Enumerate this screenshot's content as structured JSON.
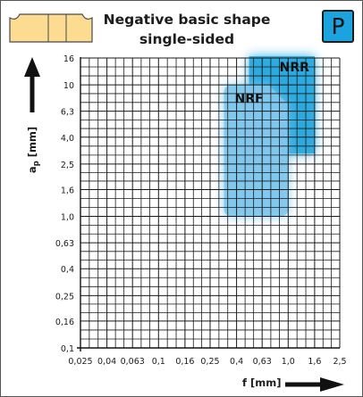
{
  "header": {
    "title_line1": "Negative basic shape",
    "title_line2": "single-sided",
    "badge": "P"
  },
  "colors": {
    "badge": "#1aa3de",
    "nrr_region": "#29a9de",
    "nrf_region": "#80c8ee",
    "insert_icon": "#fbdc91",
    "grid": "#1a1a1a"
  },
  "chart_data": {
    "type": "area",
    "xlabel": "f [mm]",
    "ylabel": "ap [mm]",
    "x_scale": "log",
    "y_scale": "log",
    "x_ticks": [
      "0,025",
      "0,04",
      "0,063",
      "0,1",
      "0,16",
      "0,25",
      "0,4",
      "0,63",
      "1,0",
      "1,6",
      "2,5"
    ],
    "x_tick_values": [
      0.025,
      0.04,
      0.063,
      0.1,
      0.16,
      0.25,
      0.4,
      0.63,
      1.0,
      1.6,
      2.5
    ],
    "y_ticks": [
      "0,1",
      "0,16",
      "0,25",
      "0,4",
      "0,63",
      "1,0",
      "1,6",
      "2,5",
      "4,0",
      "6,3",
      "10",
      "16"
    ],
    "y_tick_values": [
      0.1,
      0.16,
      0.25,
      0.4,
      0.63,
      1.0,
      1.6,
      2.5,
      4.0,
      6.3,
      10,
      16
    ],
    "xlim": [
      0.025,
      2.5
    ],
    "ylim": [
      0.1,
      16
    ],
    "grid": true,
    "regions": [
      {
        "name": "NRR",
        "f_range": [
          0.5,
          1.6
        ],
        "ap_range": [
          3.0,
          16
        ],
        "color": "#29a9de"
      },
      {
        "name": "NRF",
        "f_range": [
          0.32,
          1.0
        ],
        "ap_range": [
          1.0,
          10
        ],
        "color": "#80c8ee"
      }
    ]
  }
}
